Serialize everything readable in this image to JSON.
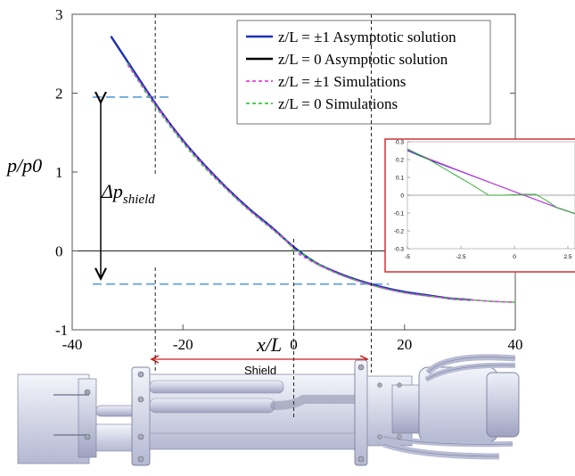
{
  "chart_data": [
    {
      "type": "line",
      "title": "",
      "xlabel": "x/L",
      "ylabel": "p/p0",
      "xlim": [
        -40,
        40
      ],
      "ylim": [
        -1,
        3
      ],
      "xticks": [
        "-40",
        "-20",
        "0",
        "20",
        "40"
      ],
      "yticks": [
        "-1",
        "0",
        "1",
        "2",
        "3"
      ],
      "grid": false,
      "legend_position": "top-right",
      "series": [
        {
          "name": "z/L = ±1 Asymptotic solution",
          "color": "#1a2fbf",
          "style": "solid",
          "x": [
            -33,
            -30,
            -27,
            -24,
            -20,
            -16,
            -12,
            -8,
            -4,
            0,
            4,
            8,
            12,
            16,
            20,
            24,
            28,
            32
          ],
          "y": [
            2.72,
            2.4,
            2.08,
            1.77,
            1.4,
            1.08,
            0.79,
            0.53,
            0.3,
            0.05,
            -0.15,
            -0.28,
            -0.38,
            -0.46,
            -0.52,
            -0.56,
            -0.6,
            -0.62
          ]
        },
        {
          "name": "z/L =  0 Asymptotic solution",
          "color": "#000000",
          "style": "solid",
          "x": [
            -33,
            -30,
            -27,
            -24,
            -20,
            -16,
            -12,
            -8,
            -4,
            0,
            4,
            8,
            12,
            16,
            20,
            24,
            28,
            32
          ],
          "y": [
            2.72,
            2.4,
            2.08,
            1.77,
            1.4,
            1.08,
            0.79,
            0.53,
            0.3,
            0.05,
            -0.15,
            -0.28,
            -0.38,
            -0.46,
            -0.52,
            -0.56,
            -0.6,
            -0.62
          ]
        },
        {
          "name": "z/L = ±1 Simulations",
          "color": "#e040e0",
          "style": "dashed",
          "x": [
            -30,
            -27,
            -24,
            -20,
            -16,
            -12,
            -8,
            -4,
            -1,
            0,
            1,
            4,
            8,
            12,
            16,
            20,
            24,
            28,
            32,
            36,
            40
          ],
          "y": [
            2.36,
            2.06,
            1.76,
            1.39,
            1.07,
            0.78,
            0.52,
            0.29,
            0.11,
            0.03,
            -0.04,
            -0.16,
            -0.29,
            -0.39,
            -0.47,
            -0.53,
            -0.57,
            -0.6,
            -0.62,
            -0.64,
            -0.65
          ]
        },
        {
          "name": "z/L =  0 Simulations",
          "color": "#33cc33",
          "style": "dashed",
          "x": [
            -30,
            -27,
            -24,
            -20,
            -16,
            -12,
            -8,
            -4,
            -1,
            0,
            1,
            4,
            8,
            12,
            16,
            20,
            24,
            28,
            32,
            36,
            40
          ],
          "y": [
            2.38,
            2.04,
            1.74,
            1.37,
            1.05,
            0.77,
            0.51,
            0.28,
            0.1,
            0.0,
            -0.01,
            -0.15,
            -0.29,
            -0.39,
            -0.47,
            -0.53,
            -0.57,
            -0.6,
            -0.62,
            -0.64,
            -0.65
          ]
        }
      ],
      "annotations": {
        "delta_label": "Δp",
        "delta_sub": "shield",
        "shield_label": "Shield",
        "reference_x": [
          -25,
          0,
          14
        ],
        "reference_y": [
          1.95,
          -0.42
        ]
      }
    },
    {
      "type": "line",
      "title": "",
      "xlim": [
        -5,
        5
      ],
      "ylim": [
        -0.3,
        0.3
      ],
      "xticks": [
        "-5",
        "-2.5",
        "0",
        "2.5"
      ],
      "yticks": [
        "0.3",
        "0.2",
        "0.1",
        "0",
        "-0.1",
        "-0.2",
        "-0.3"
      ],
      "series": [
        {
          "color": "#1a2fbf",
          "x": [
            -5,
            -4,
            -3,
            -2,
            -1,
            0,
            1,
            2,
            3,
            4,
            5
          ],
          "y": [
            0.25,
            0.2,
            0.155,
            0.11,
            0.065,
            0.02,
            -0.025,
            -0.07,
            -0.11,
            -0.15,
            -0.19
          ]
        },
        {
          "color": "#e040e0",
          "x": [
            -5,
            -4,
            -3,
            -2,
            -1,
            0,
            1,
            2,
            3,
            4,
            5
          ],
          "y": [
            0.255,
            0.205,
            0.158,
            0.112,
            0.066,
            0.021,
            -0.024,
            -0.069,
            -0.11,
            -0.15,
            -0.19
          ]
        },
        {
          "color": "#33aa33",
          "x": [
            -5,
            -4,
            -3,
            -2,
            -1.2,
            -0.5,
            0.5,
            1,
            1.5,
            2,
            3,
            4,
            5
          ],
          "y": [
            0.26,
            0.2,
            0.13,
            0.06,
            0.0,
            0.0,
            0.005,
            0.005,
            -0.03,
            -0.07,
            -0.11,
            -0.15,
            -0.19
          ]
        }
      ]
    }
  ]
}
